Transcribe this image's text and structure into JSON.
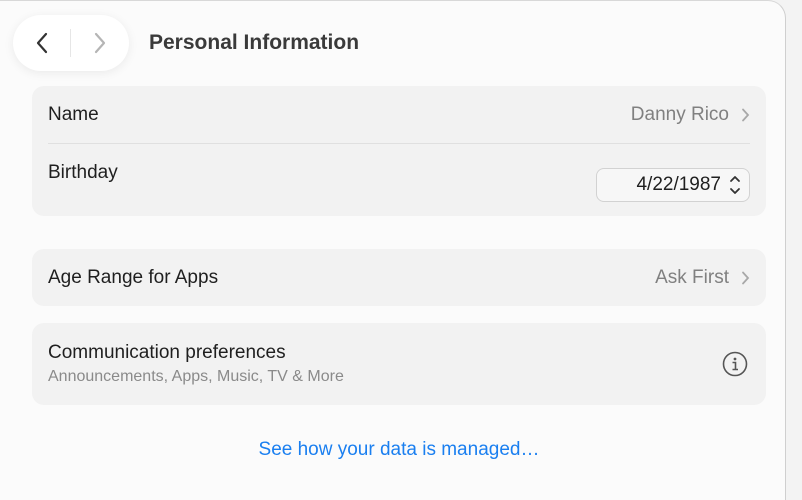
{
  "header": {
    "title": "Personal Information"
  },
  "name": {
    "label": "Name",
    "value": "Danny Rico"
  },
  "birthday": {
    "label": "Birthday",
    "value": "4/22/1987"
  },
  "age_range": {
    "label": "Age Range for Apps",
    "value": "Ask First"
  },
  "communication": {
    "label": "Communication preferences",
    "subtitle": "Announcements, Apps, Music, TV & More"
  },
  "footer": {
    "link": "See how your data is managed…"
  },
  "colors": {
    "accent": "#1a7ff0",
    "card": "#f2f2f2"
  }
}
